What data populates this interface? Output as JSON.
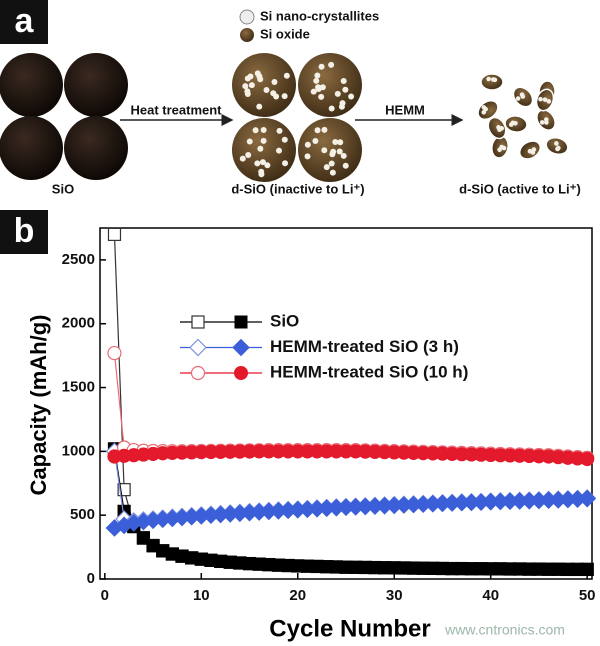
{
  "panel_a": {
    "label": "a",
    "legend": [
      "Si nano-crystallites",
      "Si oxide"
    ],
    "arrows": [
      "Heat treatment",
      "HEMM"
    ],
    "stages": [
      "SiO",
      "d-SiO (inactive to Li⁺)",
      "d-SiO (active to Li⁺)"
    ]
  },
  "watermark": "www.cntronics.com",
  "chart_data": {
    "type": "line",
    "label": "b",
    "xlabel": "Cycle Number",
    "ylabel": "Capacity (mAh/g)",
    "xlim": [
      -0.5,
      50.5
    ],
    "ylim": [
      0,
      2750
    ],
    "xticks": [
      0,
      10,
      20,
      30,
      40,
      50
    ],
    "yticks": [
      0,
      500,
      1000,
      1500,
      2000,
      2500
    ],
    "x": [
      1,
      2,
      3,
      4,
      5,
      6,
      7,
      8,
      9,
      10,
      11,
      12,
      13,
      14,
      15,
      16,
      17,
      18,
      19,
      20,
      21,
      22,
      23,
      24,
      25,
      26,
      27,
      28,
      29,
      30,
      31,
      32,
      33,
      34,
      35,
      36,
      37,
      38,
      39,
      40,
      41,
      42,
      43,
      44,
      45,
      46,
      47,
      48,
      49,
      50
    ],
    "series": [
      {
        "name": "SiO",
        "color": "#000000",
        "open_color": "#333333",
        "marker": "square",
        "values": [
          1020,
          530,
          410,
          320,
          260,
          220,
          195,
          178,
          165,
          155,
          146,
          138,
          131,
          125,
          120,
          116,
          112,
          108,
          105,
          102,
          100,
          98,
          96,
          94,
          92,
          91,
          90,
          89,
          88,
          87,
          86,
          85,
          84,
          83,
          82,
          81,
          81,
          80,
          80,
          79,
          79,
          78,
          78,
          77,
          77,
          76,
          76,
          75,
          75,
          75
        ],
        "values_open": [
          2700,
          700,
          420,
          325,
          263,
          222,
          197,
          180,
          166,
          156,
          147,
          139,
          132,
          126,
          121,
          117,
          113,
          109,
          106,
          103,
          101,
          99,
          97,
          95,
          93,
          92,
          91,
          90,
          89,
          88,
          87,
          86,
          85,
          84,
          83,
          82,
          82,
          81,
          81,
          80,
          80,
          79,
          79,
          78,
          78,
          77,
          77,
          76,
          76,
          76
        ]
      },
      {
        "name": "HEMM-treated SiO (3 h)",
        "color": "#3a5fd8",
        "open_color": "#7b8fe0",
        "marker": "diamond",
        "values": [
          400,
          420,
          440,
          450,
          460,
          468,
          475,
          482,
          488,
          494,
          500,
          505,
          510,
          515,
          520,
          525,
          530,
          534,
          538,
          542,
          546,
          550,
          554,
          558,
          562,
          565,
          568,
          571,
          574,
          577,
          580,
          583,
          586,
          589,
          592,
          595,
          598,
          600,
          602,
          605,
          607,
          609,
          611,
          613,
          615,
          618,
          620,
          623,
          626,
          630
        ],
        "values_open": [
          1000,
          470,
          455,
          462,
          470,
          477,
          484,
          490,
          496,
          502,
          507,
          512,
          517,
          522,
          527,
          532,
          536,
          540,
          544,
          548,
          552,
          556,
          560,
          564,
          567,
          570,
          573,
          576,
          579,
          582,
          585,
          588,
          591,
          594,
          597,
          600,
          603,
          605,
          607,
          610,
          612,
          614,
          616,
          618,
          620,
          623,
          625,
          628,
          631,
          635
        ]
      },
      {
        "name": "HEMM-treated SiO (10 h)",
        "color": "#e3192c",
        "open_color": "#e86a74",
        "marker": "circle",
        "values": [
          960,
          965,
          970,
          975,
          980,
          985,
          988,
          990,
          992,
          994,
          995,
          996,
          997,
          998,
          999,
          1000,
          1000,
          1000,
          1000,
          1000,
          1000,
          1000,
          1000,
          1000,
          1000,
          1000,
          998,
          996,
          994,
          992,
          990,
          988,
          986,
          984,
          982,
          980,
          978,
          976,
          974,
          972,
          970,
          968,
          966,
          964,
          962,
          960,
          955,
          950,
          945,
          940
        ],
        "values_open": [
          1770,
          1030,
          1010,
          1005,
          1003,
          1002,
          1001,
          1001,
          1002,
          1003,
          1004,
          1005,
          1006,
          1007,
          1008,
          1009,
          1010,
          1010,
          1010,
          1010,
          1010,
          1010,
          1010,
          1010,
          1010,
          1010,
          1008,
          1006,
          1004,
          1002,
          1000,
          998,
          996,
          994,
          992,
          990,
          988,
          986,
          984,
          982,
          980,
          978,
          976,
          974,
          972,
          970,
          965,
          960,
          955,
          950
        ]
      }
    ]
  }
}
